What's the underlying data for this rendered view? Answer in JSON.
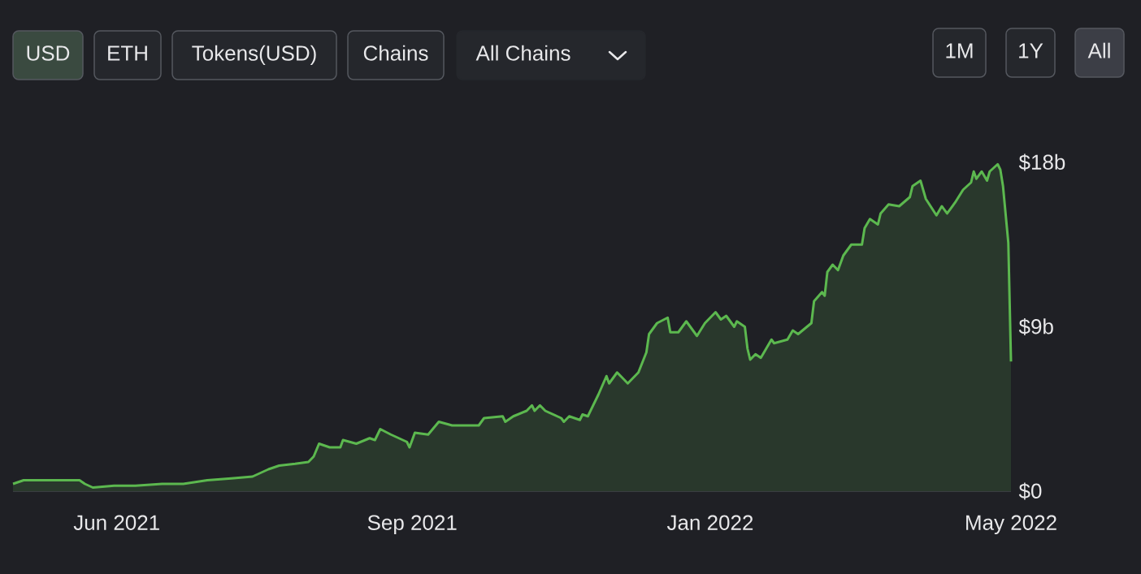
{
  "chart_data": {
    "type": "area",
    "annotations": [
      "USD",
      "ETH",
      "Tokens(USD)",
      "Chains",
      "All Chains",
      "1M",
      "1Y",
      "All"
    ],
    "x": [
      "2021-05-01",
      "2021-05-05",
      "2021-05-11",
      "2021-05-21",
      "2021-05-26",
      "2021-05-28",
      "2021-05-31",
      "2021-06-08",
      "2021-06-16",
      "2021-06-26",
      "2021-07-04",
      "2021-07-13",
      "2021-07-22",
      "2021-07-30",
      "2021-08-05",
      "2021-08-09",
      "2021-08-15",
      "2021-08-20",
      "2021-08-22",
      "2021-08-24",
      "2021-08-28",
      "2021-09-01",
      "2021-09-02",
      "2021-09-07",
      "2021-09-12",
      "2021-09-14",
      "2021-09-16",
      "2021-09-20",
      "2021-09-26",
      "2021-09-27",
      "2021-09-29",
      "2021-10-04",
      "2021-10-08",
      "2021-10-13",
      "2021-10-20",
      "2021-10-23",
      "2021-10-25",
      "2021-11-01",
      "2021-11-02",
      "2021-11-05",
      "2021-11-10",
      "2021-11-12",
      "2021-11-13",
      "2021-11-15",
      "2021-11-17",
      "2021-11-23",
      "2021-11-24",
      "2021-11-26",
      "2021-11-30",
      "2021-12-01",
      "2021-12-03",
      "2021-12-07",
      "2021-12-10",
      "2021-12-11",
      "2021-12-14",
      "2021-12-18",
      "2021-12-22",
      "2021-12-25",
      "2021-12-26",
      "2021-12-29",
      "2022-01-02",
      "2022-01-03",
      "2022-01-06",
      "2022-01-09",
      "2022-01-13",
      "2022-01-16",
      "2022-01-20",
      "2022-01-22",
      "2022-01-24",
      "2022-01-27",
      "2022-01-28",
      "2022-01-31",
      "2022-02-01",
      "2022-02-02",
      "2022-02-04",
      "2022-02-06",
      "2022-02-10",
      "2022-02-11",
      "2022-02-16",
      "2022-02-18",
      "2022-02-20",
      "2022-02-25",
      "2022-02-26",
      "2022-03-01",
      "2022-03-02",
      "2022-03-03",
      "2022-03-05",
      "2022-03-07",
      "2022-03-09",
      "2022-03-12",
      "2022-03-16",
      "2022-03-17",
      "2022-03-19",
      "2022-03-22",
      "2022-03-23",
      "2022-03-26",
      "2022-03-30",
      "2022-04-03",
      "2022-04-04",
      "2022-04-07",
      "2022-04-09",
      "2022-04-13",
      "2022-04-15",
      "2022-04-17",
      "2022-04-20",
      "2022-04-23",
      "2022-04-26",
      "2022-04-27",
      "2022-04-28",
      "2022-04-30",
      "2022-05-02",
      "2022-05-03",
      "2022-05-06",
      "2022-05-07",
      "2022-05-08",
      "2022-05-10",
      "2022-05-11"
    ],
    "series": [
      {
        "color": "#5cb84f",
        "values": [
          0.4,
          0.6,
          0.6,
          0.6,
          0.6,
          0.4,
          0.2,
          0.3,
          0.3,
          0.4,
          0.4,
          0.6,
          0.7,
          0.8,
          1.2,
          1.4,
          1.5,
          1.6,
          1.9,
          2.6,
          2.4,
          2.4,
          2.8,
          2.6,
          2.9,
          2.8,
          3.4,
          3.1,
          2.7,
          2.4,
          3.2,
          3.1,
          3.8,
          3.6,
          3.6,
          3.6,
          4.0,
          4.1,
          3.8,
          4.1,
          4.4,
          4.7,
          4.4,
          4.7,
          4.4,
          4.0,
          3.8,
          4.1,
          3.9,
          4.2,
          4.1,
          5.3,
          6.3,
          5.9,
          6.5,
          5.9,
          6.5,
          7.6,
          8.6,
          9.2,
          9.5,
          8.7,
          8.7,
          9.3,
          8.5,
          9.2,
          9.8,
          9.4,
          9.6,
          9.0,
          9.3,
          9.0,
          7.8,
          7.2,
          7.5,
          7.3,
          8.3,
          8.1,
          8.3,
          8.8,
          8.6,
          9.2,
          10.4,
          10.9,
          10.7,
          12.0,
          12.4,
          12.1,
          12.9,
          13.5,
          13.5,
          14.4,
          14.9,
          14.6,
          15.2,
          15.7,
          15.6,
          16.1,
          16.7,
          17.0,
          16.0,
          15.1,
          15.6,
          15.2,
          15.8,
          16.5,
          16.9,
          17.5,
          17.1,
          17.5,
          17.0,
          17.5,
          17.9,
          17.6,
          16.7,
          13.6,
          7.1
        ]
      }
    ],
    "xticks": [
      {
        "value": "2021-06-09",
        "label": "Jun 2021"
      },
      {
        "value": "2021-09-28",
        "label": "Sep 2021"
      },
      {
        "value": "2022-01-18",
        "label": "Jan 2022"
      },
      {
        "value": "2022-05-11",
        "label": "May 2022"
      }
    ],
    "xlim": [
      "2021-05-01",
      "2022-05-11"
    ],
    "ylim": [
      0,
      18
    ],
    "yticks": [
      {
        "value": 0,
        "label": "$0"
      },
      {
        "value": 9,
        "label": "$9b"
      },
      {
        "value": 18,
        "label": "$18b"
      }
    ]
  }
}
